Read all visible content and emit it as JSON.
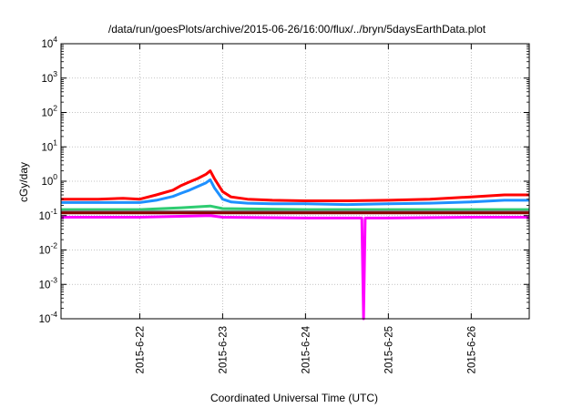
{
  "chart_data": {
    "type": "line",
    "title": "/data/run/goesPlots/archive/2015-06-26/16:00/flux/../bryn/5daysEarthData.plot",
    "xlabel": "Coordinated Universal Time (UTC)",
    "ylabel": "cGy/day",
    "yscale": "log",
    "ylim": [
      0.0001,
      10000
    ],
    "xlim": [
      21.05,
      26.7
    ],
    "grid": true,
    "legend": "none",
    "y_ticks": [
      {
        "base": "10",
        "exp": "-4"
      },
      {
        "base": "10",
        "exp": "-3"
      },
      {
        "base": "10",
        "exp": "-2"
      },
      {
        "base": "10",
        "exp": "-1"
      },
      {
        "base": "10",
        "exp": "0"
      },
      {
        "base": "10",
        "exp": "1"
      },
      {
        "base": "10",
        "exp": "2"
      },
      {
        "base": "10",
        "exp": "3"
      },
      {
        "base": "10",
        "exp": "4"
      }
    ],
    "x_ticks": [
      {
        "value": 22,
        "label": "2015-6-22"
      },
      {
        "value": 23,
        "label": "2015-6-23"
      },
      {
        "value": 24,
        "label": "2015-6-24"
      },
      {
        "value": 25,
        "label": "2015-6-25"
      },
      {
        "value": 26,
        "label": "2015-6-26"
      }
    ],
    "series": [
      {
        "color": "#ff0000",
        "x": [
          21.05,
          21.5,
          21.8,
          22.0,
          22.2,
          22.4,
          22.5,
          22.6,
          22.7,
          22.8,
          22.85,
          22.9,
          23.0,
          23.1,
          23.3,
          23.6,
          24.0,
          24.5,
          25.0,
          25.5,
          26.0,
          26.4,
          26.7
        ],
        "y": [
          0.3,
          0.3,
          0.32,
          0.3,
          0.4,
          0.55,
          0.75,
          0.95,
          1.2,
          1.6,
          2.0,
          1.2,
          0.5,
          0.35,
          0.3,
          0.28,
          0.27,
          0.27,
          0.28,
          0.3,
          0.35,
          0.4,
          0.4
        ]
      },
      {
        "color": "#1e90ff",
        "x": [
          21.05,
          21.5,
          21.8,
          22.0,
          22.2,
          22.4,
          22.5,
          22.6,
          22.7,
          22.8,
          22.85,
          22.9,
          23.0,
          23.1,
          23.3,
          23.6,
          24.0,
          24.5,
          25.0,
          25.5,
          26.0,
          26.4,
          26.7
        ],
        "y": [
          0.24,
          0.24,
          0.24,
          0.24,
          0.28,
          0.36,
          0.45,
          0.55,
          0.7,
          0.9,
          1.1,
          0.65,
          0.3,
          0.25,
          0.23,
          0.22,
          0.22,
          0.21,
          0.22,
          0.23,
          0.25,
          0.28,
          0.28
        ]
      },
      {
        "color": "#2ecc71",
        "x": [
          21.05,
          22.0,
          22.5,
          22.85,
          23.0,
          24.0,
          25.0,
          26.0,
          26.7
        ],
        "y": [
          0.15,
          0.15,
          0.17,
          0.19,
          0.16,
          0.15,
          0.15,
          0.15,
          0.15
        ]
      },
      {
        "color": "#808080",
        "x": [
          21.05,
          22.0,
          23.0,
          24.0,
          25.0,
          26.0,
          26.7
        ],
        "y": [
          0.13,
          0.13,
          0.13,
          0.13,
          0.13,
          0.13,
          0.13
        ]
      },
      {
        "color": "#8b0000",
        "x": [
          21.05,
          22.0,
          23.0,
          24.0,
          25.0,
          26.0,
          26.7
        ],
        "y": [
          0.12,
          0.12,
          0.12,
          0.12,
          0.12,
          0.12,
          0.12
        ]
      },
      {
        "color": "#ff00ff",
        "x": [
          21.05,
          22.0,
          22.85,
          23.0,
          24.0,
          24.5,
          24.68,
          24.7,
          24.72,
          25.0,
          26.0,
          26.7
        ],
        "y": [
          0.09,
          0.09,
          0.1,
          0.09,
          0.085,
          0.085,
          0.085,
          0.0001,
          0.085,
          0.085,
          0.09,
          0.09
        ]
      }
    ]
  }
}
